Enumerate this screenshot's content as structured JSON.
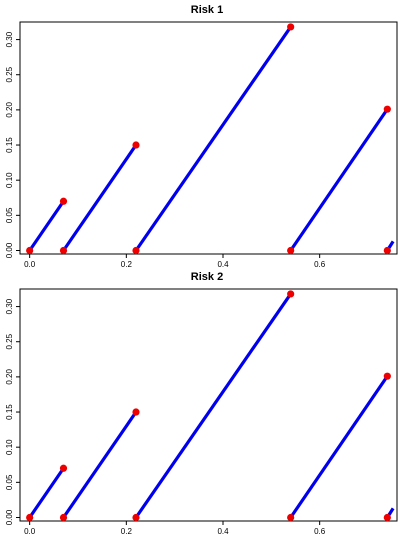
{
  "colors": {
    "line": "#0000ee",
    "point": "#ee0000",
    "axis": "#000000"
  },
  "chart_data": [
    {
      "type": "line",
      "title": "Risk  1",
      "xlabel": "",
      "ylabel": "",
      "xlim": [
        -0.02,
        0.76
      ],
      "ylim": [
        -0.005,
        0.325
      ],
      "x_ticks": [
        0.0,
        0.2,
        0.4,
        0.6
      ],
      "x_tick_labels": [
        "0.0",
        "0.2",
        "0.4",
        "0.6"
      ],
      "y_ticks": [
        0.0,
        0.05,
        0.1,
        0.15,
        0.2,
        0.25,
        0.3
      ],
      "y_tick_labels": [
        "0.00",
        "0.05",
        "0.10",
        "0.15",
        "0.20",
        "0.25",
        "0.30"
      ],
      "segments": [
        {
          "x": [
            0.0,
            0.07
          ],
          "y": [
            0.0,
            0.07
          ]
        },
        {
          "x": [
            0.07,
            0.22
          ],
          "y": [
            0.0,
            0.15
          ]
        },
        {
          "x": [
            0.22,
            0.54
          ],
          "y": [
            0.0,
            0.318
          ]
        },
        {
          "x": [
            0.54,
            0.74
          ],
          "y": [
            0.0,
            0.201
          ]
        },
        {
          "x": [
            0.74,
            0.752
          ],
          "y": [
            0.0,
            0.013
          ]
        }
      ],
      "points": [
        {
          "x": 0.0,
          "y": 0.0
        },
        {
          "x": 0.07,
          "y": 0.07
        },
        {
          "x": 0.07,
          "y": 0.0
        },
        {
          "x": 0.22,
          "y": 0.15
        },
        {
          "x": 0.22,
          "y": 0.0
        },
        {
          "x": 0.54,
          "y": 0.318
        },
        {
          "x": 0.54,
          "y": 0.0
        },
        {
          "x": 0.74,
          "y": 0.201
        },
        {
          "x": 0.74,
          "y": 0.0
        }
      ]
    },
    {
      "type": "line",
      "title": "Risk  2",
      "xlabel": "",
      "ylabel": "",
      "xlim": [
        -0.02,
        0.76
      ],
      "ylim": [
        -0.005,
        0.325
      ],
      "x_ticks": [
        0.0,
        0.2,
        0.4,
        0.6
      ],
      "x_tick_labels": [
        "0.0",
        "0.2",
        "0.4",
        "0.6"
      ],
      "y_ticks": [
        0.0,
        0.05,
        0.1,
        0.15,
        0.2,
        0.25,
        0.3
      ],
      "y_tick_labels": [
        "0.00",
        "0.05",
        "0.10",
        "0.15",
        "0.20",
        "0.25",
        "0.30"
      ],
      "segments": [
        {
          "x": [
            0.0,
            0.07
          ],
          "y": [
            0.0,
            0.07
          ]
        },
        {
          "x": [
            0.07,
            0.22
          ],
          "y": [
            0.0,
            0.15
          ]
        },
        {
          "x": [
            0.22,
            0.54
          ],
          "y": [
            0.0,
            0.318
          ]
        },
        {
          "x": [
            0.54,
            0.74
          ],
          "y": [
            0.0,
            0.201
          ]
        },
        {
          "x": [
            0.74,
            0.752
          ],
          "y": [
            0.0,
            0.013
          ]
        }
      ],
      "points": [
        {
          "x": 0.0,
          "y": 0.0
        },
        {
          "x": 0.07,
          "y": 0.07
        },
        {
          "x": 0.07,
          "y": 0.0
        },
        {
          "x": 0.22,
          "y": 0.15
        },
        {
          "x": 0.22,
          "y": 0.0
        },
        {
          "x": 0.54,
          "y": 0.318
        },
        {
          "x": 0.54,
          "y": 0.0
        },
        {
          "x": 0.74,
          "y": 0.201
        },
        {
          "x": 0.74,
          "y": 0.0
        }
      ]
    }
  ]
}
